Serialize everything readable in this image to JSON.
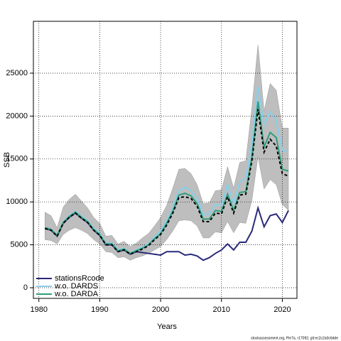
{
  "chart_data": {
    "type": "line",
    "xlabel": "Years",
    "ylabel": "SSB",
    "footer": "stockassessment.org, Pie7a, r17092, git:ec2c2a0c6dde",
    "x": [
      1981,
      1982,
      1983,
      1984,
      1985,
      1986,
      1987,
      1988,
      1989,
      1990,
      1991,
      1992,
      1993,
      1994,
      1995,
      1996,
      1997,
      1998,
      1999,
      2000,
      2001,
      2002,
      2003,
      2004,
      2005,
      2006,
      2007,
      2008,
      2009,
      2010,
      2011,
      2012,
      2013,
      2014,
      2015,
      2016,
      2017,
      2018,
      2019,
      2020,
      2021
    ],
    "xlim": [
      1979.1,
      2022.4
    ],
    "ylim": [
      -1240,
      31040
    ],
    "xticks": [
      1980,
      1990,
      2000,
      2010,
      2020
    ],
    "yticks": [
      0,
      5000,
      10000,
      15000,
      20000,
      25000
    ],
    "grid": true,
    "legend_loc": "bottom left",
    "band": {
      "color": "#bebebe",
      "upper": [
        8800,
        8400,
        7000,
        9400,
        10300,
        10900,
        10100,
        9300,
        8200,
        7500,
        6000,
        6100,
        5100,
        5400,
        4800,
        5200,
        5800,
        6300,
        7200,
        8200,
        9600,
        11600,
        13800,
        13900,
        13300,
        12000,
        9800,
        9900,
        11300,
        11400,
        14100,
        11600,
        14600,
        14800,
        21000,
        28300,
        20600,
        23800,
        23000,
        18600,
        18600
      ],
      "lower": [
        5600,
        5500,
        5100,
        6200,
        6700,
        7000,
        6700,
        6300,
        5600,
        5100,
        4200,
        4100,
        3500,
        3600,
        3200,
        3500,
        3700,
        4000,
        4400,
        4800,
        5600,
        6600,
        7800,
        7900,
        7800,
        7200,
        5800,
        5800,
        6500,
        6400,
        7700,
        6400,
        7600,
        7500,
        10200,
        15300,
        11500,
        12600,
        12000,
        9700,
        9000
      ]
    },
    "series": [
      {
        "name": "stationsRcode",
        "color": "#2b2a7a",
        "dash": "none",
        "values": [
          6900,
          6700,
          6000,
          7500,
          8200,
          8700,
          8100,
          7600,
          6700,
          6100,
          5000,
          5000,
          4200,
          4400,
          3900,
          4200,
          4100,
          4000,
          3900,
          3800,
          4200,
          4200,
          4200,
          3800,
          3900,
          3700,
          3200,
          3500,
          4000,
          4400,
          5100,
          4400,
          5300,
          5300,
          6600,
          9300,
          7100,
          8400,
          8600,
          7600,
          9000
        ]
      },
      {
        "name": "w.o. DARDS",
        "color": "#87cfeb",
        "dash": "none",
        "values": [
          7000,
          6800,
          6100,
          7600,
          8400,
          8900,
          8300,
          7800,
          6900,
          6300,
          5200,
          5200,
          4400,
          4600,
          4000,
          4400,
          4700,
          5100,
          5900,
          6600,
          7800,
          9300,
          11300,
          11700,
          11300,
          10400,
          8500,
          8600,
          9700,
          9600,
          12000,
          9800,
          12300,
          12800,
          16800,
          23500,
          19000,
          20500,
          19500,
          16000,
          15800
        ]
      },
      {
        "name": "w.o. DARDA",
        "color": "#2e9d7d",
        "dash": "none",
        "values": [
          7000,
          6800,
          6100,
          7600,
          8300,
          8800,
          8200,
          7700,
          6800,
          6200,
          5100,
          5100,
          4300,
          4500,
          4000,
          4300,
          4600,
          5000,
          5700,
          6300,
          7500,
          8900,
          10800,
          11000,
          10700,
          9800,
          8000,
          8000,
          9000,
          8900,
          10900,
          9000,
          11100,
          11200,
          15200,
          21700,
          16400,
          18100,
          17500,
          13800,
          13600
        ]
      },
      {
        "color": "#000000",
        "dash": "4 3",
        "values": [
          6900,
          6700,
          6000,
          7500,
          8200,
          8700,
          8100,
          7600,
          6700,
          6100,
          5000,
          5000,
          4200,
          4400,
          3900,
          4200,
          4500,
          4900,
          5600,
          6200,
          7300,
          8700,
          10500,
          10600,
          10400,
          9500,
          7700,
          7700,
          8700,
          8600,
          10600,
          8700,
          10800,
          10900,
          14800,
          20800,
          15800,
          17300,
          16500,
          13300,
          13000
        ]
      }
    ]
  }
}
